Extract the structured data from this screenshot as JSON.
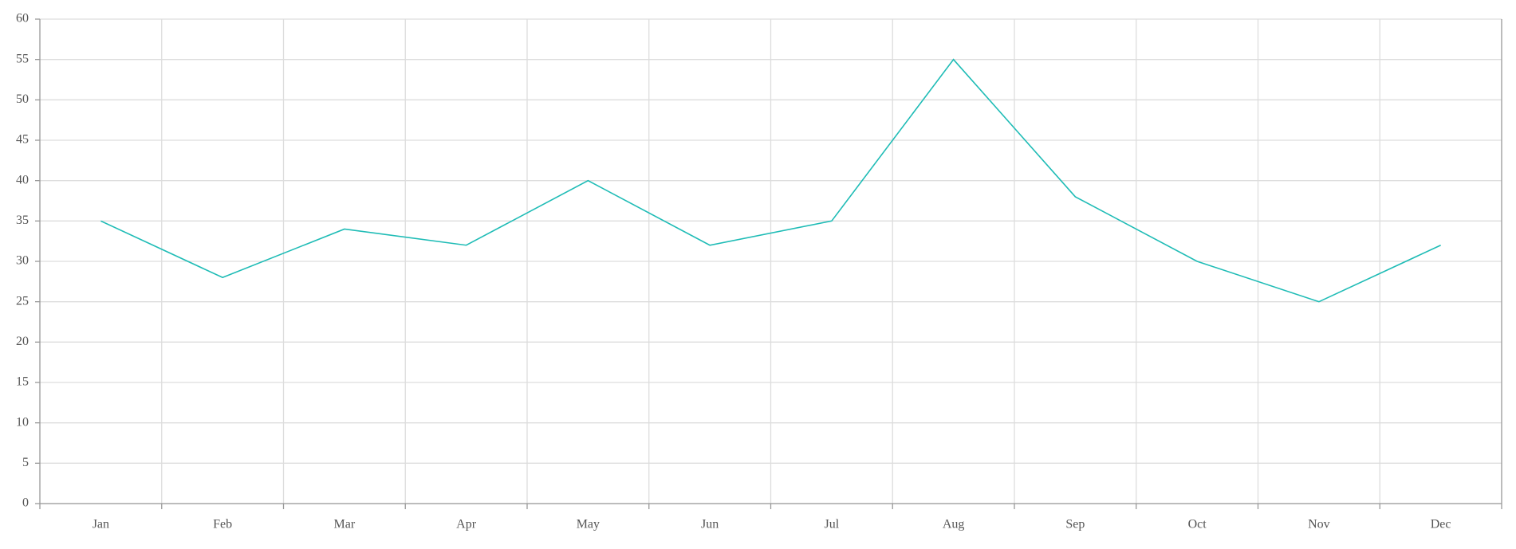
{
  "chart_data": {
    "type": "line",
    "categories": [
      "Jan",
      "Feb",
      "Mar",
      "Apr",
      "May",
      "Jun",
      "Jul",
      "Aug",
      "Sep",
      "Oct",
      "Nov",
      "Dec"
    ],
    "series": [
      {
        "color": "#1fbcb6",
        "values": [
          35,
          28,
          34,
          32,
          40,
          32,
          35,
          55,
          38,
          30,
          25,
          32
        ]
      }
    ],
    "ylim": [
      0,
      60
    ],
    "yticks": [
      0,
      5,
      10,
      15,
      20,
      25,
      30,
      35,
      40,
      45,
      50,
      55,
      60
    ],
    "grid": true
  }
}
